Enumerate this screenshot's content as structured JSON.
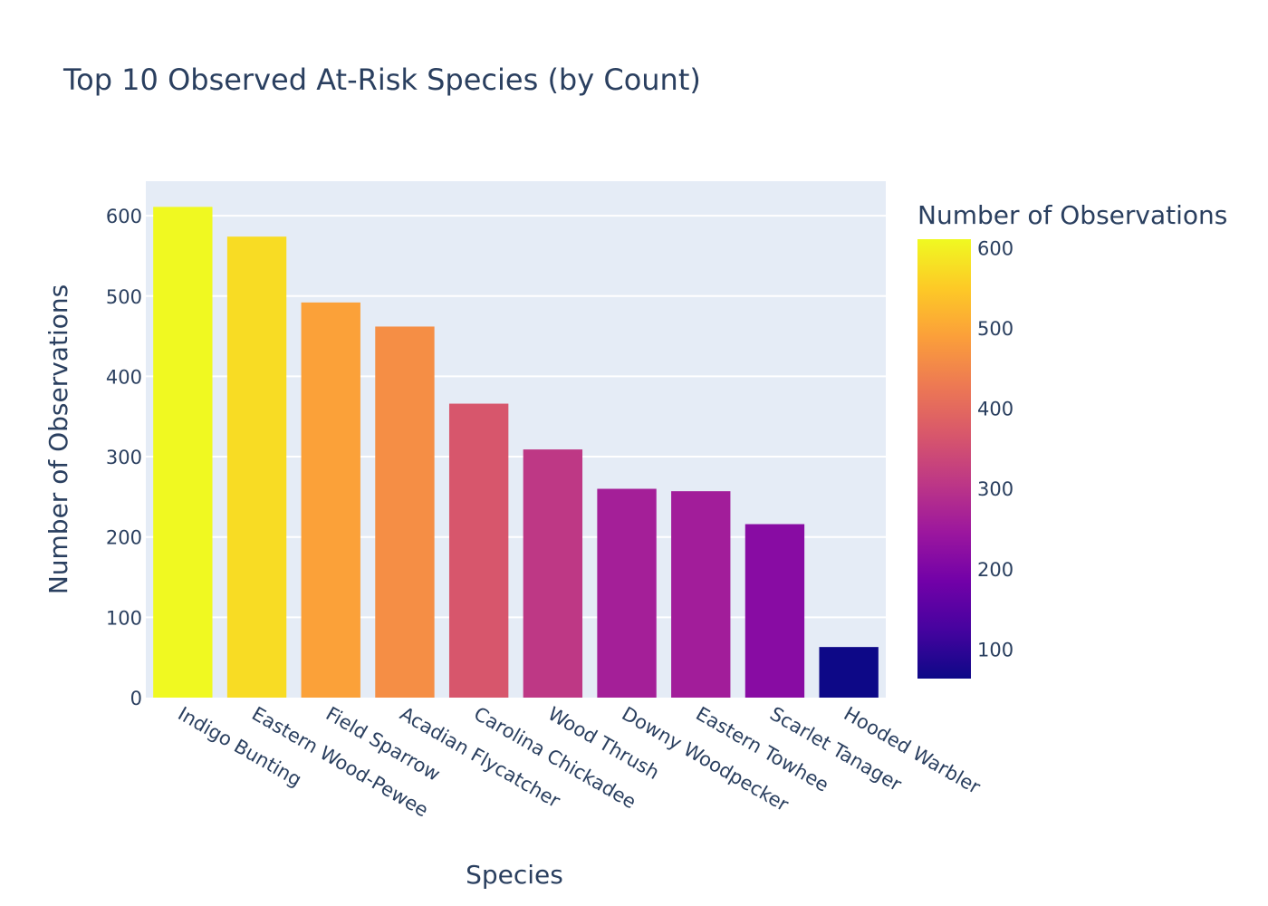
{
  "chart_data": {
    "type": "bar",
    "title": "Top 10 Observed At-Risk Species (by Count)",
    "xlabel": "Species",
    "ylabel": "Number of Observations",
    "categories": [
      "Indigo Bunting",
      "Eastern Wood-Pewee",
      "Field Sparrow",
      "Acadian Flycatcher",
      "Carolina Chickadee",
      "Wood Thrush",
      "Downy Woodpecker",
      "Eastern Towhee",
      "Scarlet Tanager",
      "Hooded Warbler"
    ],
    "values": [
      611,
      574,
      492,
      462,
      366,
      309,
      260,
      257,
      216,
      63
    ],
    "ylim": [
      0,
      643
    ],
    "yticks": [
      0,
      100,
      200,
      300,
      400,
      500,
      600
    ],
    "grid": true,
    "plot_background": "#e5ecf6",
    "colorscale_name": "Plasma",
    "colorscale": [
      "#0d0887",
      "#46039f",
      "#7201a8",
      "#9c179e",
      "#bd3786",
      "#d8576b",
      "#ed7953",
      "#fb9f3a",
      "#fdca26",
      "#f0f921"
    ],
    "colorbar": {
      "title": "Number of Observations",
      "range": [
        63,
        611
      ],
      "ticks": [
        100,
        200,
        300,
        400,
        500,
        600
      ]
    }
  }
}
